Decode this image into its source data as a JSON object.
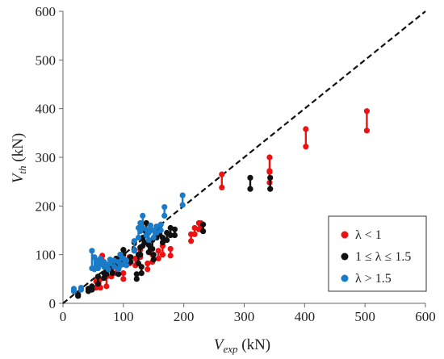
{
  "chart_data": {
    "type": "scatter",
    "title": "",
    "xlabel": {
      "main": "V",
      "sub": "exp",
      "unit": " (kN)"
    },
    "ylabel": {
      "main": "V",
      "sub": "th",
      "unit": " (kN)"
    },
    "xlim": [
      0,
      600
    ],
    "ylim": [
      0,
      600
    ],
    "xticks": [
      0,
      100,
      200,
      300,
      400,
      500,
      600
    ],
    "yticks": [
      0,
      100,
      200,
      300,
      400,
      500,
      600
    ],
    "x_tick_labels": [
      "0",
      "100",
      "200",
      "300",
      "400",
      "500",
      "600"
    ],
    "y_tick_labels": [
      "0",
      "100",
      "200",
      "300",
      "400",
      "500",
      "600"
    ],
    "grid": false,
    "reference_line": {
      "style": "dashed",
      "from": [
        0,
        0
      ],
      "to": [
        600,
        600
      ]
    },
    "legend_position": "bottom-right",
    "series": [
      {
        "name": "λ < 1",
        "color": "#ee1111",
        "pairs": [
          [
            55,
            32,
            45
          ],
          [
            62,
            32,
            50
          ],
          [
            65,
            88,
            98
          ],
          [
            72,
            35,
            55
          ],
          [
            80,
            55,
            68
          ],
          [
            88,
            62,
            75
          ],
          [
            100,
            50,
            62
          ],
          [
            110,
            82,
            95
          ],
          [
            120,
            78,
            92
          ],
          [
            128,
            95,
            110
          ],
          [
            140,
            70,
            82
          ],
          [
            148,
            85,
            100
          ],
          [
            158,
            92,
            108
          ],
          [
            165,
            100,
            118
          ],
          [
            178,
            98,
            112
          ],
          [
            212,
            128,
            142
          ],
          [
            218,
            142,
            155
          ],
          [
            225,
            152,
            165
          ],
          [
            228,
            155,
            165
          ],
          [
            263,
            238,
            265
          ],
          [
            342,
            248,
            270
          ],
          [
            342,
            272,
            300
          ],
          [
            402,
            322,
            358
          ],
          [
            503,
            355,
            395
          ]
        ]
      },
      {
        "name": "1 ≤ λ ≤ 1.5",
        "color": "#111111",
        "pairs": [
          [
            25,
            15,
            18
          ],
          [
            42,
            25,
            30
          ],
          [
            48,
            28,
            35
          ],
          [
            58,
            40,
            55
          ],
          [
            68,
            52,
            62
          ],
          [
            72,
            60,
            70
          ],
          [
            78,
            70,
            82
          ],
          [
            82,
            62,
            78
          ],
          [
            88,
            80,
            92
          ],
          [
            92,
            60,
            72
          ],
          [
            95,
            85,
            100
          ],
          [
            100,
            100,
            110
          ],
          [
            112,
            85,
            95
          ],
          [
            118,
            110,
            125
          ],
          [
            122,
            50,
            60
          ],
          [
            125,
            82,
            100
          ],
          [
            128,
            100,
            115
          ],
          [
            130,
            62,
            75
          ],
          [
            132,
            118,
            135
          ],
          [
            135,
            125,
            150
          ],
          [
            138,
            140,
            165
          ],
          [
            142,
            105,
            120
          ],
          [
            148,
            112,
            130
          ],
          [
            150,
            90,
            100
          ],
          [
            155,
            135,
            150
          ],
          [
            160,
            142,
            158
          ],
          [
            165,
            125,
            135
          ],
          [
            172,
            130,
            145
          ],
          [
            178,
            140,
            155
          ],
          [
            185,
            140,
            152
          ],
          [
            232,
            148,
            162
          ],
          [
            310,
            235,
            258
          ],
          [
            343,
            235,
            258
          ]
        ]
      },
      {
        "name": "λ > 1.5",
        "color": "#1a7bc8",
        "pairs": [
          [
            18,
            25,
            30
          ],
          [
            30,
            28,
            32
          ],
          [
            48,
            72,
            108
          ],
          [
            52,
            70,
            95
          ],
          [
            55,
            75,
            88
          ],
          [
            58,
            72,
            82
          ],
          [
            62,
            80,
            92
          ],
          [
            68,
            75,
            85
          ],
          [
            75,
            70,
            80
          ],
          [
            78,
            82,
            90
          ],
          [
            85,
            75,
            88
          ],
          [
            92,
            70,
            85
          ],
          [
            95,
            78,
            100
          ],
          [
            100,
            80,
            92
          ],
          [
            105,
            78,
            88
          ],
          [
            118,
            108,
            128
          ],
          [
            125,
            135,
            155
          ],
          [
            128,
            148,
            165
          ],
          [
            132,
            155,
            180
          ],
          [
            138,
            140,
            152
          ],
          [
            142,
            130,
            145
          ],
          [
            145,
            150,
            160
          ],
          [
            150,
            135,
            150
          ],
          [
            155,
            145,
            158
          ],
          [
            162,
            150,
            162
          ],
          [
            168,
            180,
            198
          ],
          [
            198,
            202,
            222
          ]
        ]
      }
    ]
  }
}
